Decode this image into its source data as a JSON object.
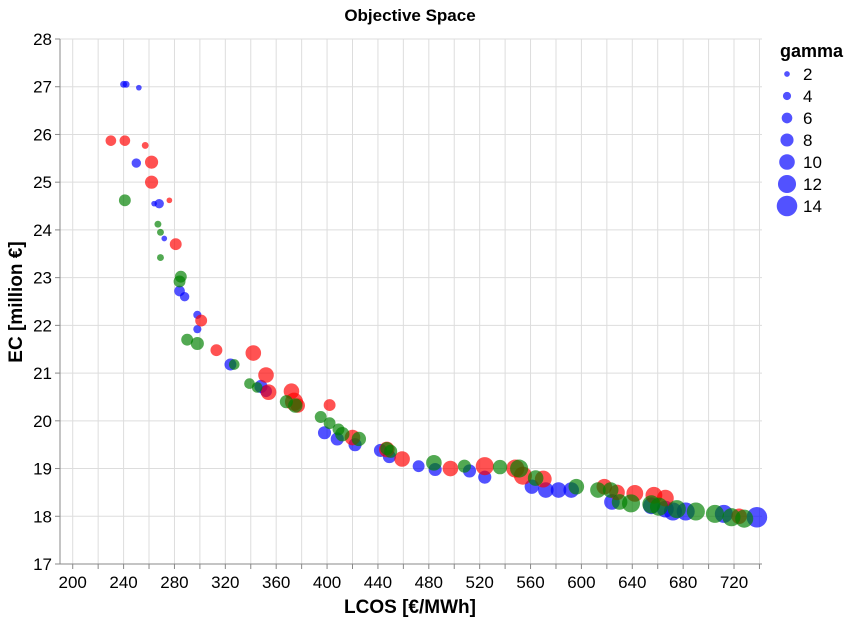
{
  "chart_data": {
    "type": "scatter",
    "title": "Objective Space",
    "xlabel": "LCOS [€/MWh]",
    "ylabel": "EC [million €]",
    "xlim": [
      190,
      742
    ],
    "ylim": [
      17,
      28
    ],
    "x_ticks": [
      200,
      240,
      280,
      320,
      360,
      400,
      440,
      480,
      520,
      560,
      600,
      640,
      680,
      720
    ],
    "y_ticks": [
      17,
      18,
      19,
      20,
      21,
      22,
      23,
      24,
      25,
      26,
      27,
      28
    ],
    "grid": true,
    "legend": {
      "title": "gamma",
      "placement": "right",
      "values": [
        2,
        4,
        6,
        8,
        10,
        12,
        14
      ]
    },
    "colors": {
      "blue": "#0000ff",
      "red": "#ff0000",
      "green": "#008000"
    },
    "series": [
      {
        "color": "blue",
        "points": [
          [
            240,
            27.05,
            3
          ],
          [
            242,
            27.05,
            3
          ],
          [
            252,
            26.98,
            2
          ],
          [
            250,
            25.4,
            5
          ],
          [
            264,
            24.55,
            2
          ],
          [
            268,
            24.55,
            5
          ],
          [
            272,
            23.82,
            2
          ],
          [
            284,
            22.72,
            6
          ],
          [
            288,
            22.6,
            5
          ],
          [
            298,
            22.22,
            4
          ],
          [
            298,
            21.92,
            4
          ],
          [
            324,
            21.18,
            7
          ],
          [
            348,
            20.72,
            8
          ],
          [
            352,
            20.62,
            7
          ],
          [
            398,
            19.75,
            8
          ],
          [
            408,
            19.62,
            8
          ],
          [
            422,
            19.5,
            8
          ],
          [
            442,
            19.38,
            8
          ],
          [
            449,
            19.25,
            8
          ],
          [
            472,
            19.05,
            7
          ],
          [
            485,
            18.98,
            8
          ],
          [
            512,
            18.95,
            8
          ],
          [
            524,
            18.82,
            8
          ],
          [
            561,
            18.62,
            9
          ],
          [
            572,
            18.55,
            10
          ],
          [
            582,
            18.55,
            10
          ],
          [
            592,
            18.55,
            10
          ],
          [
            624,
            18.3,
            10
          ],
          [
            655,
            18.22,
            11
          ],
          [
            666,
            18.15,
            11
          ],
          [
            672,
            18.1,
            12
          ],
          [
            682,
            18.1,
            12
          ],
          [
            712,
            18.05,
            12
          ],
          [
            738,
            17.98,
            14
          ]
        ]
      },
      {
        "color": "red",
        "points": [
          [
            230,
            25.87,
            6
          ],
          [
            241,
            25.87,
            6
          ],
          [
            257,
            25.77,
            3
          ],
          [
            262,
            25.42,
            8
          ],
          [
            262,
            25.0,
            8
          ],
          [
            276,
            24.62,
            2
          ],
          [
            281,
            23.7,
            7
          ],
          [
            301,
            22.1,
            7
          ],
          [
            313,
            21.48,
            7
          ],
          [
            342,
            21.42,
            10
          ],
          [
            352,
            20.96,
            10
          ],
          [
            354,
            20.6,
            10
          ],
          [
            372,
            20.62,
            10
          ],
          [
            374,
            20.4,
            12
          ],
          [
            377,
            20.32,
            9
          ],
          [
            402,
            20.33,
            7
          ],
          [
            420,
            19.65,
            10
          ],
          [
            447,
            19.4,
            10
          ],
          [
            459,
            19.2,
            10
          ],
          [
            497,
            19.0,
            10
          ],
          [
            524,
            19.05,
            12
          ],
          [
            548,
            19.0,
            12
          ],
          [
            554,
            18.85,
            12
          ],
          [
            570,
            18.78,
            11
          ],
          [
            618,
            18.62,
            10
          ],
          [
            628,
            18.5,
            10
          ],
          [
            642,
            18.48,
            11
          ],
          [
            657,
            18.44,
            11
          ],
          [
            666,
            18.38,
            11
          ],
          [
            724,
            18.0,
            10
          ]
        ]
      },
      {
        "color": "green",
        "points": [
          [
            241,
            24.62,
            7
          ],
          [
            267,
            24.12,
            3
          ],
          [
            269,
            23.95,
            3
          ],
          [
            269,
            23.42,
            3
          ],
          [
            285,
            23.02,
            7
          ],
          [
            284,
            22.92,
            7
          ],
          [
            290,
            21.7,
            7
          ],
          [
            298,
            21.62,
            8
          ],
          [
            327,
            21.18,
            6
          ],
          [
            339,
            20.78,
            6
          ],
          [
            345,
            20.7,
            6
          ],
          [
            368,
            20.4,
            8
          ],
          [
            375,
            20.32,
            9
          ],
          [
            395,
            20.08,
            7
          ],
          [
            402,
            19.95,
            7
          ],
          [
            409,
            19.82,
            7
          ],
          [
            412,
            19.72,
            9
          ],
          [
            425,
            19.62,
            9
          ],
          [
            447,
            19.42,
            8
          ],
          [
            450,
            19.36,
            8
          ],
          [
            484,
            19.12,
            10
          ],
          [
            508,
            19.05,
            8
          ],
          [
            536,
            19.03,
            9
          ],
          [
            551,
            19.0,
            12
          ],
          [
            564,
            18.8,
            10
          ],
          [
            596,
            18.62,
            10
          ],
          [
            613,
            18.55,
            10
          ],
          [
            623,
            18.55,
            10
          ],
          [
            630,
            18.3,
            10
          ],
          [
            639,
            18.27,
            12
          ],
          [
            655,
            18.25,
            12
          ],
          [
            661,
            18.2,
            12
          ],
          [
            675,
            18.15,
            12
          ],
          [
            690,
            18.1,
            12
          ],
          [
            705,
            18.05,
            12
          ],
          [
            718,
            17.98,
            12
          ],
          [
            728,
            17.95,
            12
          ]
        ]
      }
    ]
  }
}
